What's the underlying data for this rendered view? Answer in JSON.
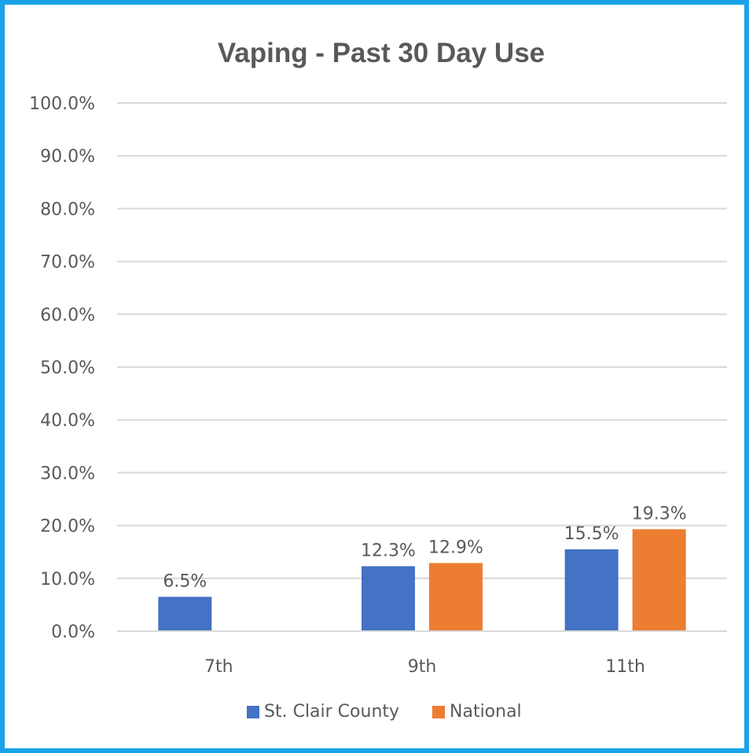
{
  "chart_data": {
    "type": "bar",
    "title": "Vaping - Past 30 Day Use",
    "categories": [
      "7th",
      "9th",
      "11th"
    ],
    "series": [
      {
        "name": "St. Clair County",
        "color": "#4472c4",
        "values": [
          6.5,
          12.3,
          15.5
        ],
        "labels": [
          "6.5%",
          "12.3%",
          "15.5%"
        ]
      },
      {
        "name": "National",
        "color": "#ed7d31",
        "values": [
          null,
          12.9,
          19.3
        ],
        "labels": [
          null,
          "12.9%",
          "19.3%"
        ]
      }
    ],
    "yticks": [
      "0.0%",
      "10.0%",
      "20.0%",
      "30.0%",
      "40.0%",
      "50.0%",
      "60.0%",
      "70.0%",
      "80.0%",
      "90.0%",
      "100.0%"
    ],
    "ylim": [
      0,
      100
    ],
    "grid": true,
    "legend_position": "bottom",
    "frame_color": "#1aa3e8",
    "grid_color": "#d9d9d9",
    "text_color": "#595959"
  }
}
